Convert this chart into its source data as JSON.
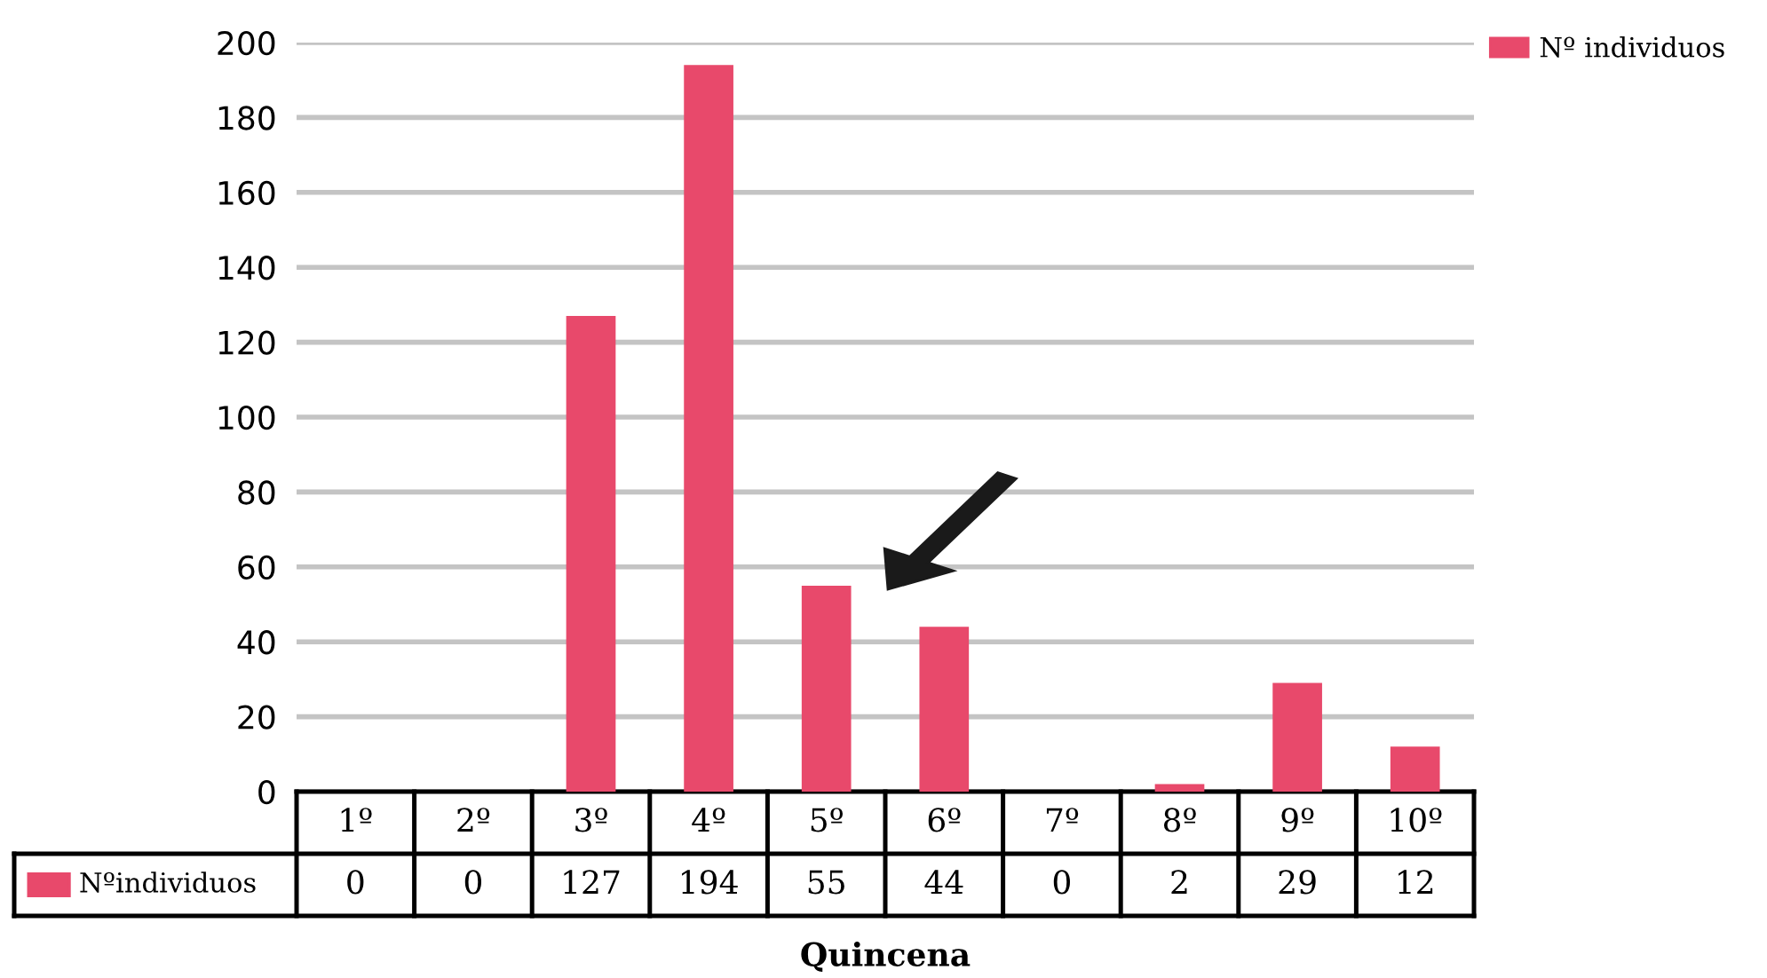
{
  "chart_data": {
    "type": "bar",
    "categories": [
      "1º",
      "2º",
      "3º",
      "4º",
      "5º",
      "6º",
      "7º",
      "8º",
      "9º",
      "10º"
    ],
    "series": [
      {
        "name": "Nº individuos",
        "color": "#e8496b",
        "values": [
          0,
          0,
          127,
          194,
          55,
          44,
          0,
          2,
          29,
          12
        ]
      }
    ],
    "data_labels": true,
    "xlabel": "Quincena",
    "annotations": [
      "Nºindividuos"
    ],
    "ylim": [
      0,
      200
    ],
    "yticks": [
      0,
      20,
      40,
      60,
      80,
      100,
      120,
      140,
      160,
      180,
      200
    ],
    "grid": "y",
    "legend": "top right"
  }
}
